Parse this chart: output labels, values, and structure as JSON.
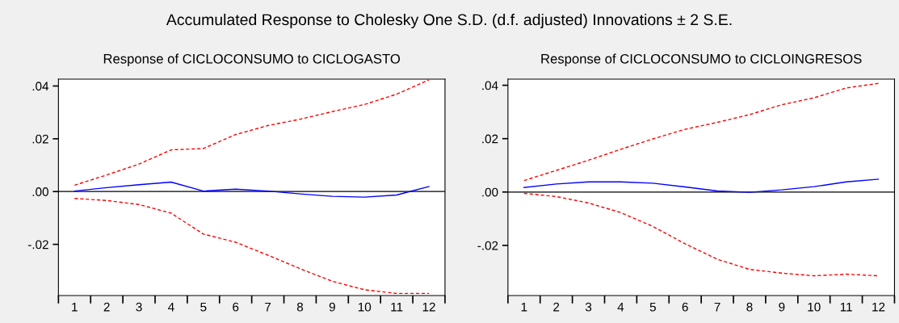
{
  "chart_data": [
    {
      "type": "line",
      "title": "Response of CICLOCONSUMO to CICLOGASTO",
      "annotations": [
        "Accumulated Response to Cholesky One S.D. (d.f. adjusted) Innovations ± 2 S.E."
      ],
      "categories": [
        "1",
        "2",
        "3",
        "4",
        "5",
        "6",
        "7",
        "8",
        "9",
        "10",
        "11",
        "12"
      ],
      "series": [
        {
          "color": "#0000ff",
          "line_style": "solid",
          "values": [
            0.0002,
            0.0015,
            0.0026,
            0.0036,
            0.0002,
            0.0009,
            0.0002,
            -0.0009,
            -0.0018,
            -0.0021,
            -0.0013,
            0.0019
          ]
        },
        {
          "color": "#ff0000",
          "line_style": "dashed",
          "values": [
            0.0024,
            0.0063,
            0.0104,
            0.0158,
            0.0163,
            0.0216,
            0.025,
            0.0274,
            0.0303,
            0.033,
            0.0369,
            0.0423
          ]
        },
        {
          "color": "#ff0000",
          "line_style": "dashed",
          "values": [
            -0.0026,
            -0.0034,
            -0.0049,
            -0.0082,
            -0.0161,
            -0.0192,
            -0.0241,
            -0.0292,
            -0.034,
            -0.0372,
            -0.0386,
            -0.0386
          ]
        }
      ],
      "ylim": [
        -0.0394,
        0.0426
      ],
      "yticks": [
        {
          "value": -0.02,
          "label": "-.02"
        },
        {
          "value": 0,
          "label": ".00"
        },
        {
          "value": 0.02,
          "label": ".02"
        },
        {
          "value": 0.04,
          "label": ".04"
        }
      ],
      "ref_lines": [
        {
          "axis": "y",
          "value": 0,
          "color": "#000000"
        }
      ],
      "grid": false,
      "legend": false
    },
    {
      "type": "line",
      "title": "Response of CICLOCONSUMO to CICLOINGRESOS",
      "categories": [
        "1",
        "2",
        "3",
        "4",
        "5",
        "6",
        "7",
        "8",
        "9",
        "10",
        "11",
        "12"
      ],
      "series": [
        {
          "color": "#0000ff",
          "line_style": "solid",
          "values": [
            0.0017,
            0.003,
            0.0038,
            0.0038,
            0.0033,
            0.0019,
            0.0004,
            -0.0001,
            0.0008,
            0.002,
            0.0038,
            0.0048
          ]
        },
        {
          "color": "#ff0000",
          "line_style": "dashed",
          "values": [
            0.0043,
            0.0081,
            0.0119,
            0.016,
            0.0199,
            0.0235,
            0.0261,
            0.029,
            0.0327,
            0.0353,
            0.039,
            0.0407
          ]
        },
        {
          "color": "#ff0000",
          "line_style": "dashed",
          "values": [
            -0.0005,
            -0.0017,
            -0.0041,
            -0.0077,
            -0.0129,
            -0.0194,
            -0.0252,
            -0.029,
            -0.0304,
            -0.0314,
            -0.0308,
            -0.0314
          ]
        }
      ],
      "ylim": [
        -0.0388,
        0.0423
      ],
      "yticks": [
        {
          "value": -0.02,
          "label": "-.02"
        },
        {
          "value": 0,
          "label": ".00"
        },
        {
          "value": 0.02,
          "label": ".02"
        },
        {
          "value": 0.04,
          "label": ".04"
        }
      ],
      "ref_lines": [
        {
          "axis": "y",
          "value": 0,
          "color": "#000000"
        }
      ],
      "grid": false,
      "legend": false
    }
  ]
}
